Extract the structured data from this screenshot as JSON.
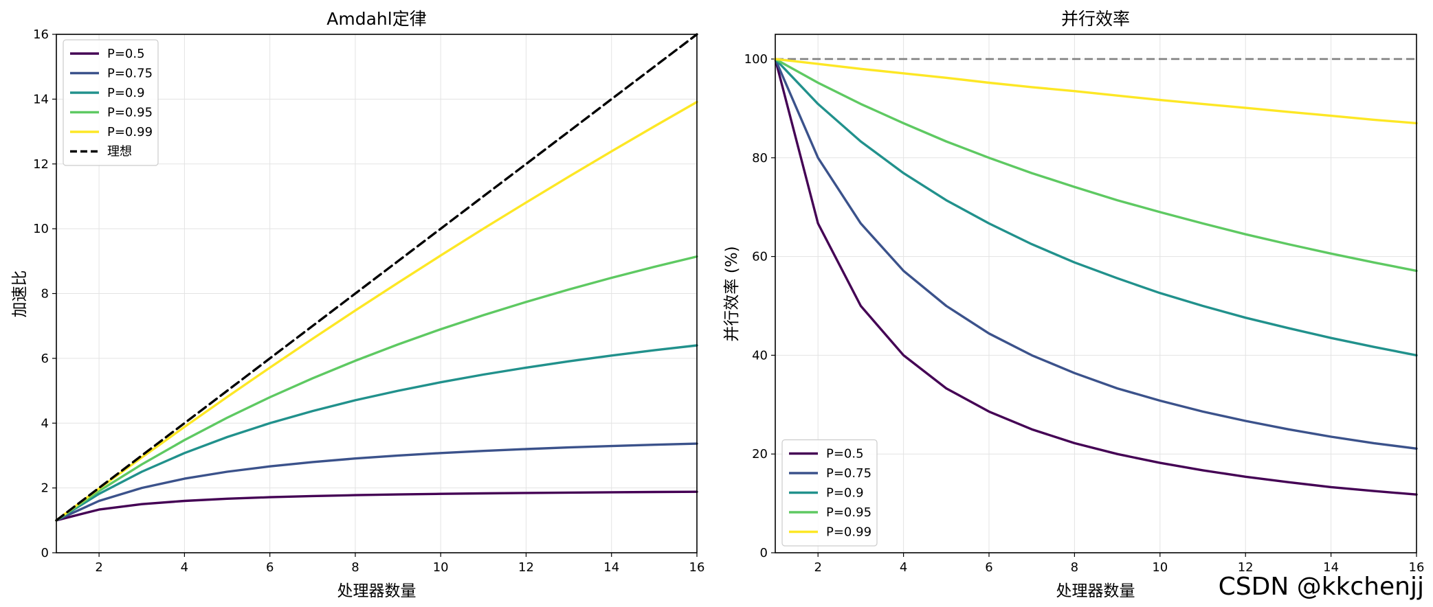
{
  "chart_data": [
    {
      "type": "line",
      "title": "Amdahl定律",
      "xlabel": "处理器数量",
      "ylabel": "加速比",
      "xlim": [
        1,
        16
      ],
      "ylim": [
        0,
        16
      ],
      "xticks": [
        2,
        4,
        6,
        8,
        10,
        12,
        14,
        16
      ],
      "yticks": [
        0,
        2,
        4,
        6,
        8,
        10,
        12,
        14,
        16
      ],
      "grid": true,
      "legend_position": "top-left",
      "x": [
        1,
        2,
        3,
        4,
        5,
        6,
        7,
        8,
        9,
        10,
        11,
        12,
        13,
        14,
        15,
        16
      ],
      "series": [
        {
          "name": "P=0.5",
          "color": "#440154",
          "dash": false,
          "values": [
            1.0,
            1.333,
            1.5,
            1.6,
            1.667,
            1.714,
            1.75,
            1.778,
            1.8,
            1.818,
            1.833,
            1.846,
            1.857,
            1.867,
            1.875,
            1.882
          ]
        },
        {
          "name": "P=0.75",
          "color": "#3b528b",
          "dash": false,
          "values": [
            1.0,
            1.6,
            2.0,
            2.286,
            2.5,
            2.667,
            2.8,
            2.909,
            3.0,
            3.077,
            3.143,
            3.2,
            3.25,
            3.294,
            3.333,
            3.368
          ]
        },
        {
          "name": "P=0.9",
          "color": "#21918c",
          "dash": false,
          "values": [
            1.0,
            1.818,
            2.5,
            3.077,
            3.571,
            4.0,
            4.375,
            4.706,
            5.0,
            5.263,
            5.5,
            5.714,
            5.909,
            6.087,
            6.25,
            6.4
          ]
        },
        {
          "name": "P=0.95",
          "color": "#5ec962",
          "dash": false,
          "values": [
            1.0,
            1.905,
            2.727,
            3.478,
            4.167,
            4.8,
            5.385,
            5.926,
            6.429,
            6.897,
            7.333,
            7.742,
            8.125,
            8.485,
            8.824,
            9.143
          ]
        },
        {
          "name": "P=0.99",
          "color": "#fde725",
          "dash": false,
          "values": [
            1.0,
            1.98,
            2.941,
            3.883,
            4.808,
            5.714,
            6.604,
            7.477,
            8.333,
            9.174,
            10.0,
            10.811,
            11.607,
            12.389,
            13.158,
            13.913
          ]
        },
        {
          "name": "理想",
          "color": "#000000",
          "dash": true,
          "values": [
            1,
            2,
            3,
            4,
            5,
            6,
            7,
            8,
            9,
            10,
            11,
            12,
            13,
            14,
            15,
            16
          ]
        }
      ]
    },
    {
      "type": "line",
      "title": "并行效率",
      "xlabel": "处理器数量",
      "ylabel": "并行效率 (%)",
      "xlim": [
        1,
        16
      ],
      "ylim": [
        0,
        105
      ],
      "xticks": [
        2,
        4,
        6,
        8,
        10,
        12,
        14,
        16
      ],
      "yticks": [
        0,
        20,
        40,
        60,
        80,
        100
      ],
      "grid": true,
      "legend_position": "bottom-left",
      "reference_line": {
        "y": 100,
        "color": "#808080",
        "dash": true
      },
      "x": [
        1,
        2,
        3,
        4,
        5,
        6,
        7,
        8,
        9,
        10,
        11,
        12,
        13,
        14,
        15,
        16
      ],
      "series": [
        {
          "name": "P=0.5",
          "color": "#440154",
          "dash": false,
          "values": [
            100,
            66.7,
            50.0,
            40.0,
            33.3,
            28.6,
            25.0,
            22.2,
            20.0,
            18.2,
            16.7,
            15.4,
            14.3,
            13.3,
            12.5,
            11.8
          ]
        },
        {
          "name": "P=0.75",
          "color": "#3b528b",
          "dash": false,
          "values": [
            100,
            80.0,
            66.7,
            57.1,
            50.0,
            44.4,
            40.0,
            36.4,
            33.3,
            30.8,
            28.6,
            26.7,
            25.0,
            23.5,
            22.2,
            21.1
          ]
        },
        {
          "name": "P=0.9",
          "color": "#21918c",
          "dash": false,
          "values": [
            100,
            90.9,
            83.3,
            76.9,
            71.4,
            66.7,
            62.5,
            58.8,
            55.6,
            52.6,
            50.0,
            47.6,
            45.5,
            43.5,
            41.7,
            40.0
          ]
        },
        {
          "name": "P=0.95",
          "color": "#5ec962",
          "dash": false,
          "values": [
            100,
            95.2,
            90.9,
            87.0,
            83.3,
            80.0,
            76.9,
            74.1,
            71.4,
            69.0,
            66.7,
            64.5,
            62.5,
            60.6,
            58.8,
            57.1
          ]
        },
        {
          "name": "P=0.99",
          "color": "#fde725",
          "dash": false,
          "values": [
            100,
            99.0,
            98.0,
            97.1,
            96.2,
            95.2,
            94.3,
            93.5,
            92.6,
            91.7,
            90.9,
            90.1,
            89.3,
            88.5,
            87.7,
            87.0
          ]
        }
      ]
    }
  ],
  "watermark": "CSDN @kkchenjj"
}
